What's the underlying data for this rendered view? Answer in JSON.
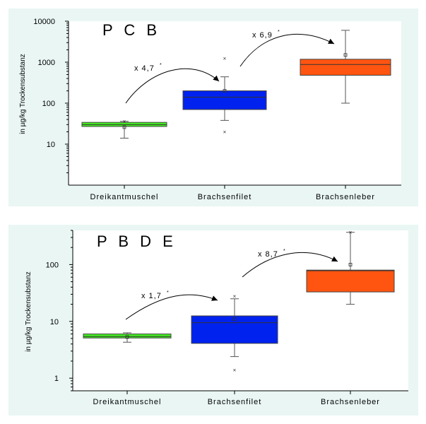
{
  "chart_data": [
    {
      "type": "box",
      "title": "P C B",
      "ylabel": "in µg/kg Trockensubstanz",
      "yscale": "log",
      "ylim": [
        1,
        10000
      ],
      "yticks": [
        10,
        100,
        1000,
        10000
      ],
      "ytick_labels": [
        "10",
        "100",
        "1000",
        "10000"
      ],
      "categories": [
        "Dreikantmuschel",
        "Brachsenfilet",
        "Brachsenleber"
      ],
      "boxes": [
        {
          "q1": 27,
          "median": 30,
          "q3": 34,
          "whisker_low": 14,
          "whisker_high": 36,
          "mean": 26,
          "outliers": [
            36
          ],
          "color": "#44ee22"
        },
        {
          "q1": 70,
          "median": 140,
          "q3": 200,
          "whisker_low": 38,
          "whisker_high": 440,
          "mean": 200,
          "outliers": [
            1250,
            20
          ],
          "color": "#0022ee"
        },
        {
          "q1": 480,
          "median": 880,
          "q3": 1180,
          "whisker_low": 100,
          "whisker_high": 6000,
          "mean": 1500,
          "outliers": [],
          "color": "#ff5510"
        }
      ],
      "annotations": [
        {
          "text": "x 4,7",
          "sup": "*",
          "from": 0,
          "to": 1
        },
        {
          "text": "x 6,9",
          "sup": "*",
          "from": 1,
          "to": 2
        }
      ]
    },
    {
      "type": "box",
      "title": "P B D E",
      "ylabel": "in µg/kg Trockensubstanz",
      "yscale": "log",
      "ylim": [
        0.6,
        400
      ],
      "yticks": [
        1,
        10,
        100
      ],
      "ytick_labels": [
        "1",
        "10",
        "100"
      ],
      "categories": [
        "Dreikantmuschel",
        "Brachsenfilet",
        "Brachsenleber"
      ],
      "boxes": [
        {
          "q1": 5.1,
          "median": 5.4,
          "q3": 6.0,
          "whisker_low": 4.3,
          "whisker_high": 6.3,
          "mean": 5.3,
          "outliers": [],
          "color": "#44ee22"
        },
        {
          "q1": 4.1,
          "median": 9.5,
          "q3": 12.5,
          "whisker_low": 2.4,
          "whisker_high": 25,
          "mean": 11,
          "outliers": [
            28,
            1.4
          ],
          "color": "#0022ee"
        },
        {
          "q1": 33,
          "median": 78,
          "q3": 80,
          "whisker_low": 20,
          "whisker_high": 370,
          "mean": 100,
          "outliers": [
            370
          ],
          "color": "#ff5510"
        }
      ],
      "annotations": [
        {
          "text": "x 1,7",
          "sup": "*",
          "from": 0,
          "to": 1
        },
        {
          "text": "x 8,7",
          "sup": "*",
          "from": 1,
          "to": 2
        }
      ]
    }
  ]
}
